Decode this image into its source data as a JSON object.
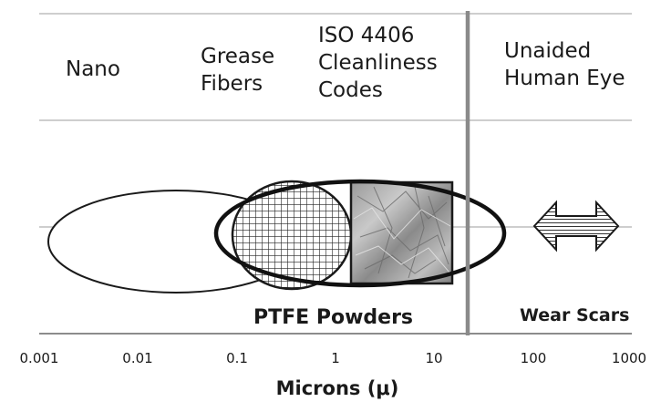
{
  "categories": {
    "nano": [
      "Nano"
    ],
    "grease": [
      "Grease",
      "Fibers"
    ],
    "iso": [
      "ISO 4406",
      "Cleanliness",
      "Codes"
    ],
    "eye": [
      "Unaided",
      "Human Eye"
    ]
  },
  "labels": {
    "ptfe": "PTFE Powders",
    "wear": "Wear Scars"
  },
  "axis": {
    "title": "Microns (μ)",
    "ticks": [
      "0.001",
      "0.01",
      "0.1",
      "1",
      "10",
      "100",
      "1000"
    ],
    "scale": "log",
    "range": [
      0.001,
      1000
    ]
  },
  "visible_eye_threshold_microns": 25
}
